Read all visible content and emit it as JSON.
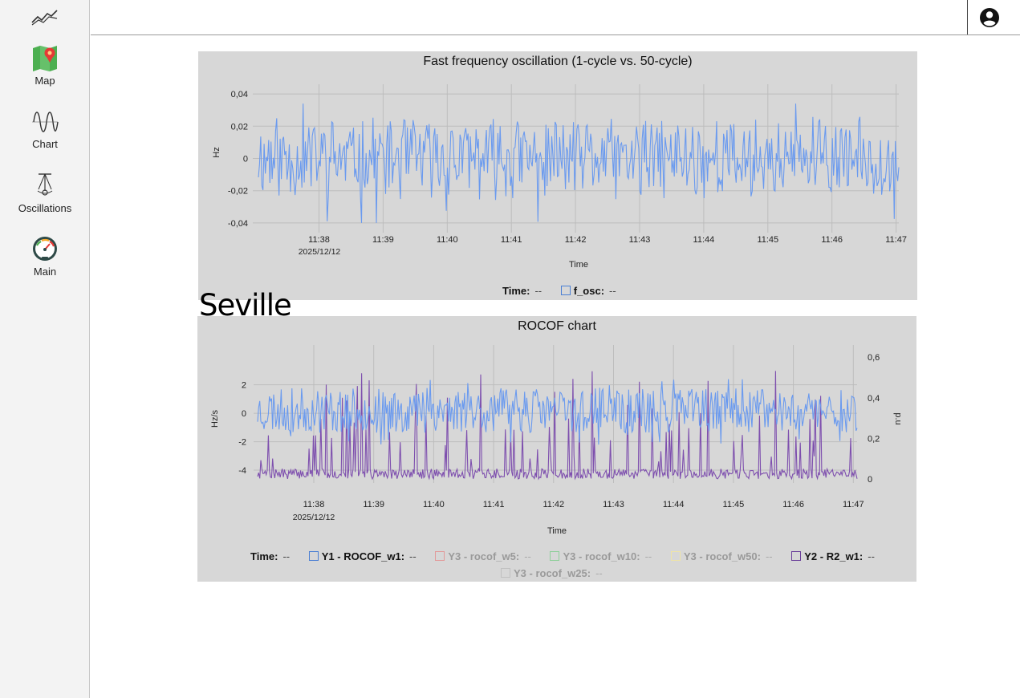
{
  "sidebar": {
    "logo": "line-chart-logo-icon",
    "items": [
      {
        "label": "Map",
        "icon": "map-icon"
      },
      {
        "label": "Chart",
        "icon": "sine-wave-icon"
      },
      {
        "label": "Oscillations",
        "icon": "pendulum-icon"
      },
      {
        "label": "Main",
        "icon": "gauge-icon"
      }
    ]
  },
  "topbar": {
    "account_icon": "account-circle-icon"
  },
  "location_title": "Seville",
  "colors": {
    "series_blue": "#6a9aef",
    "series_purple": "#7e4fae",
    "panel_bg": "#d7d7d7"
  },
  "chart_data": [
    {
      "type": "line",
      "title": "Fast frequency oscillation (1-cycle vs. 50-cycle)",
      "xlabel": "Time",
      "ylabel": "Hz",
      "x_ticks": [
        "11:38",
        "11:39",
        "11:40",
        "11:41",
        "11:42",
        "11:43",
        "11:44",
        "11:45",
        "11:46",
        "11:47"
      ],
      "x_subtick": "2025/12/12",
      "x_range": [
        "11:37:15",
        "11:47:00"
      ],
      "y_ticks": [
        "0,04",
        "0,02",
        "0",
        "-0,02",
        "-0,04"
      ],
      "ylim": [
        -0.046,
        0.046
      ],
      "grid": true,
      "series": [
        {
          "name": "f_osc",
          "color": "#6a9aef",
          "approx_amplitude": 0.018,
          "min": -0.04,
          "max": 0.034
        }
      ],
      "legend": {
        "time_label": "Time:",
        "time_value": "--",
        "items": [
          {
            "label": "f_osc:",
            "value": "--"
          }
        ]
      }
    },
    {
      "type": "line",
      "title": "ROCOF chart",
      "xlabel": "Time",
      "ylabel": "Hz/s",
      "y2label": "p.u",
      "x_ticks": [
        "11:38",
        "11:39",
        "11:40",
        "11:41",
        "11:42",
        "11:43",
        "11:44",
        "11:45",
        "11:46",
        "11:47"
      ],
      "x_subtick": "2025/12/12",
      "y_ticks": [
        "2",
        "0",
        "-2",
        "-4"
      ],
      "y2_ticks": [
        "0,6",
        "0,4",
        "0,2",
        "0"
      ],
      "ylim": [
        -4.9,
        4.8
      ],
      "y2lim": [
        -0.02,
        0.66
      ],
      "grid": true,
      "series": [
        {
          "name": "Y1 - ROCOF_w1",
          "color": "#6a9aef",
          "axis": "left",
          "approx_mean": 0.2,
          "approx_amplitude": 1.2
        },
        {
          "name": "Y2 - R2_w1",
          "color": "#7e4fae",
          "axis": "right",
          "approx_min": 0.0,
          "approx_max": 0.54
        }
      ],
      "legend": {
        "time_label": "Time:",
        "time_value": "--",
        "items": [
          {
            "label": "Y1 - ROCOF_w1:",
            "value": "--",
            "color": "#4a7fd4",
            "active": true
          },
          {
            "label": "Y3 - rocof_w5:",
            "value": "--",
            "color": "#e29a9a",
            "active": false
          },
          {
            "label": "Y3 - rocof_w10:",
            "value": "--",
            "color": "#8fcf9a",
            "active": false
          },
          {
            "label": "Y3 - rocof_w50:",
            "value": "--",
            "color": "#eee4a8",
            "active": false
          },
          {
            "label": "Y2 - R2_w1:",
            "value": "--",
            "color": "#6a3f9a",
            "active": true
          },
          {
            "label": "Y3 - rocof_w25:",
            "value": "--",
            "color": "#c0c0c0",
            "active": false
          }
        ]
      }
    }
  ]
}
